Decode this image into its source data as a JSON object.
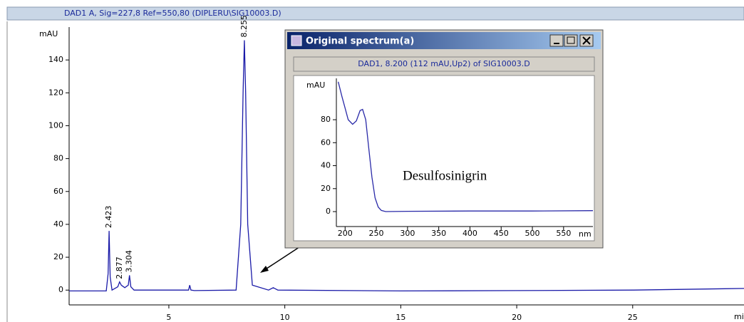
{
  "chart_data": [
    {
      "type": "line",
      "title": "DAD1 A, Sig=227,8 Ref=550,80 (DIPLERU\\SIG10003.D)",
      "y_label": "mAU",
      "x_label": "min",
      "color": "#1a1aa8",
      "x": [
        0.7,
        2.3,
        2.38,
        2.423,
        2.47,
        2.55,
        2.8,
        2.877,
        2.95,
        3.1,
        3.25,
        3.304,
        3.36,
        3.5,
        5.85,
        5.9,
        5.95,
        6.1,
        7.9,
        8.1,
        8.2,
        8.255,
        8.31,
        8.4,
        8.6,
        9.3,
        9.5,
        9.7,
        15,
        20,
        25,
        29.8
      ],
      "values": [
        -0.5,
        -0.5,
        10,
        36,
        8,
        0,
        2,
        5,
        3,
        1.5,
        3,
        9,
        2,
        0,
        0,
        3,
        0,
        -0.3,
        0,
        40,
        120,
        152,
        120,
        40,
        3,
        0,
        1.5,
        0,
        -0.5,
        -0.3,
        0,
        1
      ],
      "peaks": [
        2.423,
        2.877,
        3.304,
        8.255
      ],
      "xlim": [
        0.7,
        29.8
      ],
      "xticks": [
        5,
        10,
        15,
        20,
        25
      ],
      "ylim": [
        -9,
        160
      ],
      "yticks": [
        0,
        20,
        40,
        60,
        80,
        100,
        120,
        140
      ]
    },
    {
      "type": "line",
      "window_title": "Original spectrum(a)",
      "title": "DAD1, 8.200 (112 mAU,Up2) of SIG10003.D",
      "y_label": "mAU",
      "x_label": "nm",
      "annotation": "Desulfosinigrin",
      "color": "#2a2aa8",
      "x": [
        189,
        195,
        200,
        205,
        212,
        218,
        224,
        228,
        233,
        238,
        243,
        248,
        253,
        258,
        265,
        300,
        400,
        500,
        597
      ],
      "values": [
        113,
        100,
        90,
        80,
        76,
        79,
        88,
        89,
        80,
        55,
        30,
        12,
        4,
        1,
        0,
        0.3,
        0.5,
        0.5,
        0.8
      ],
      "xlim": [
        186,
        597
      ],
      "xticks": [
        200,
        250,
        300,
        350,
        400,
        450,
        500,
        550
      ],
      "ylim": [
        -13,
        116
      ],
      "yticks": [
        0,
        20,
        40,
        60,
        80
      ]
    }
  ]
}
